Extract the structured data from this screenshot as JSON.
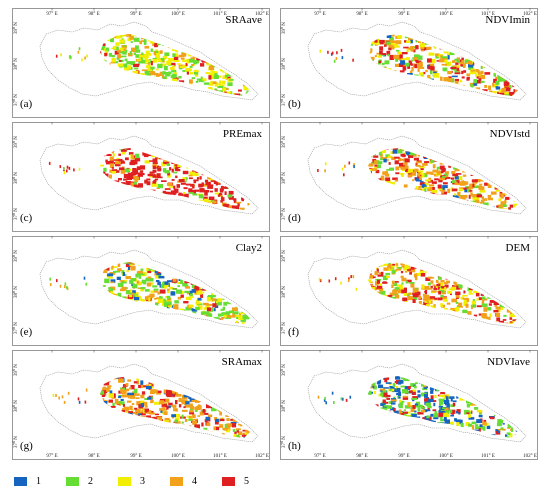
{
  "panels": [
    {
      "id": "a",
      "title": "SRAave",
      "label": "(a)",
      "dominant": [
        "#f2ee00",
        "#66dd33",
        "#f2a11a"
      ],
      "mix": [
        2,
        2,
        2,
        2,
        3,
        3,
        3,
        3,
        4,
        4,
        5
      ]
    },
    {
      "id": "b",
      "title": "NDVImin",
      "label": "(b)",
      "dominant": [
        "#f2a11a",
        "#66dd33",
        "#e02020"
      ],
      "mix": [
        2,
        2,
        3,
        3,
        4,
        4,
        4,
        5,
        5,
        5,
        1
      ]
    },
    {
      "id": "c",
      "title": "PREmax",
      "label": "(c)",
      "dominant": [
        "#e02020"
      ],
      "mix": [
        5,
        5,
        5,
        5,
        5,
        5,
        5,
        5,
        4,
        3,
        2
      ]
    },
    {
      "id": "d",
      "title": "NDVIstd",
      "label": "(d)",
      "dominant": [
        "#f2a11a",
        "#e02020"
      ],
      "mix": [
        3,
        3,
        4,
        4,
        4,
        4,
        5,
        5,
        5,
        2,
        1
      ]
    },
    {
      "id": "e",
      "title": "Clay2",
      "label": "(e)",
      "dominant": [
        "#66dd33",
        "#f2ee00"
      ],
      "mix": [
        2,
        2,
        2,
        2,
        3,
        3,
        3,
        4,
        4,
        5,
        1
      ]
    },
    {
      "id": "f",
      "title": "DEM",
      "label": "(f)",
      "dominant": [
        "#f2a11a",
        "#f2ee00",
        "#e02020"
      ],
      "mix": [
        3,
        3,
        3,
        4,
        4,
        4,
        4,
        5,
        5,
        5,
        2
      ]
    },
    {
      "id": "g",
      "title": "SRAmax",
      "label": "(g)",
      "dominant": [
        "#f2a11a",
        "#e02020"
      ],
      "mix": [
        4,
        4,
        4,
        4,
        4,
        5,
        5,
        5,
        3,
        2,
        1
      ]
    },
    {
      "id": "h",
      "title": "NDVIave",
      "label": "(h)",
      "dominant": [
        "#1565c0",
        "#66dd33"
      ],
      "mix": [
        1,
        1,
        1,
        1,
        2,
        2,
        2,
        3,
        4,
        5,
        5
      ]
    }
  ],
  "lon_ticks": [
    "97° E",
    "98° E",
    "99° E",
    "100° E",
    "101° E",
    "102° E"
  ],
  "lat_ticks": [
    "39° N",
    "38° N",
    "37° N"
  ],
  "legend": [
    {
      "value": "1",
      "color": "#1565c0"
    },
    {
      "value": "2",
      "color": "#66dd33"
    },
    {
      "value": "3",
      "color": "#f2ee00"
    },
    {
      "value": "4",
      "color": "#f2a11a"
    },
    {
      "value": "5",
      "color": "#e02020"
    }
  ]
}
